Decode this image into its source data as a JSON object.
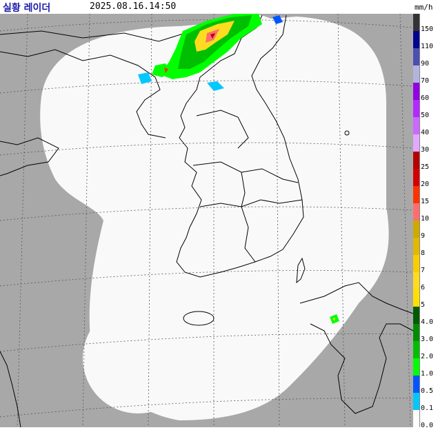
{
  "header": {
    "title": "실황 레이더",
    "timestamp": "2025.08.16.14:50",
    "unit": "mm/h"
  },
  "colors": {
    "outside_coverage": "#a8a8a8",
    "coverage": "#f9f9f9",
    "coastline": "#000000",
    "grid": "#555555",
    "title": "#1a1aa8"
  },
  "legend": {
    "levels": [
      {
        "label": "150",
        "color": "#333333"
      },
      {
        "label": "110",
        "color": "#000390"
      },
      {
        "label": "90",
        "color": "#4c4eb1"
      },
      {
        "label": "70",
        "color": "#b3b4de"
      },
      {
        "label": "60",
        "color": "#9300e4"
      },
      {
        "label": "50",
        "color": "#b329ff"
      },
      {
        "label": "40",
        "color": "#c969ff"
      },
      {
        "label": "30",
        "color": "#e0a9ff"
      },
      {
        "label": "25",
        "color": "#b40000"
      },
      {
        "label": "20",
        "color": "#d20000"
      },
      {
        "label": "15",
        "color": "#ff3200"
      },
      {
        "label": "10",
        "color": "#ff6e6e"
      },
      {
        "label": "9",
        "color": "#ccaa00"
      },
      {
        "label": "8",
        "color": "#e0b900"
      },
      {
        "label": "7",
        "color": "#f9cd00"
      },
      {
        "label": "6",
        "color": "#ffdc1f"
      },
      {
        "label": "5",
        "color": "#ffe100"
      },
      {
        "label": "4.0",
        "color": "#005a00"
      },
      {
        "label": "3.0",
        "color": "#008c00"
      },
      {
        "label": "2.0",
        "color": "#00be00"
      },
      {
        "label": "1.0",
        "color": "#00ff00"
      },
      {
        "label": "0.5",
        "color": "#0055ff"
      },
      {
        "label": "0.1",
        "color": "#00c8ff"
      },
      {
        "label": "0.0",
        "color": "#ffffff"
      }
    ]
  }
}
